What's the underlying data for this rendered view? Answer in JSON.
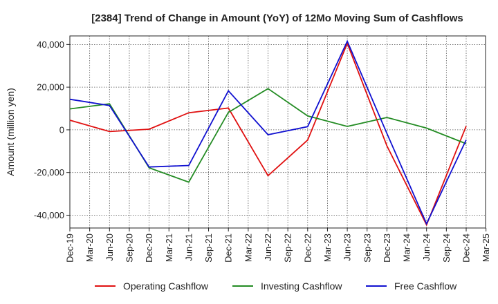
{
  "chart_data": {
    "type": "line",
    "title": "[2384]  Trend of Change in Amount (YoY) of 12Mo Moving Sum of Cashflows",
    "xlabel": "",
    "ylabel": "Amount (million yen)",
    "ylim": [
      -46000,
      44000
    ],
    "yticks": [
      -40000,
      -20000,
      0,
      20000,
      40000
    ],
    "ytick_labels": [
      "-40,000",
      "-20,000",
      "0",
      "20,000",
      "40,000"
    ],
    "grid": true,
    "legend_position": "bottom",
    "categories": [
      "Dec-19",
      "Mar-20",
      "Jun-20",
      "Sep-20",
      "Dec-20",
      "Mar-21",
      "Jun-21",
      "Sep-21",
      "Dec-21",
      "Mar-22",
      "Jun-22",
      "Sep-22",
      "Dec-22",
      "Mar-23",
      "Jun-23",
      "Sep-23",
      "Dec-23",
      "Mar-24",
      "Jun-24",
      "Sep-24",
      "Dec-24",
      "Mar-25"
    ],
    "series": [
      {
        "name": "Operating Cashflow",
        "color": "#e01010",
        "values": [
          4500,
          null,
          -800,
          null,
          300,
          null,
          8000,
          null,
          10200,
          null,
          -21500,
          null,
          -4800,
          null,
          40500,
          null,
          -7500,
          null,
          -44500,
          null,
          1800,
          null
        ]
      },
      {
        "name": "Investing Cashflow",
        "color": "#228b22",
        "values": [
          9800,
          null,
          12200,
          null,
          -17800,
          null,
          -24500,
          null,
          8200,
          null,
          19300,
          null,
          6500,
          null,
          1600,
          null,
          5800,
          null,
          800,
          null,
          -6500,
          null
        ]
      },
      {
        "name": "Free Cashflow",
        "color": "#1010d0",
        "values": [
          14300,
          null,
          11400,
          null,
          -17400,
          null,
          -16700,
          null,
          18300,
          null,
          -2300,
          null,
          1500,
          null,
          41500,
          null,
          -1700,
          null,
          -44000,
          null,
          -4700,
          null
        ]
      }
    ]
  }
}
